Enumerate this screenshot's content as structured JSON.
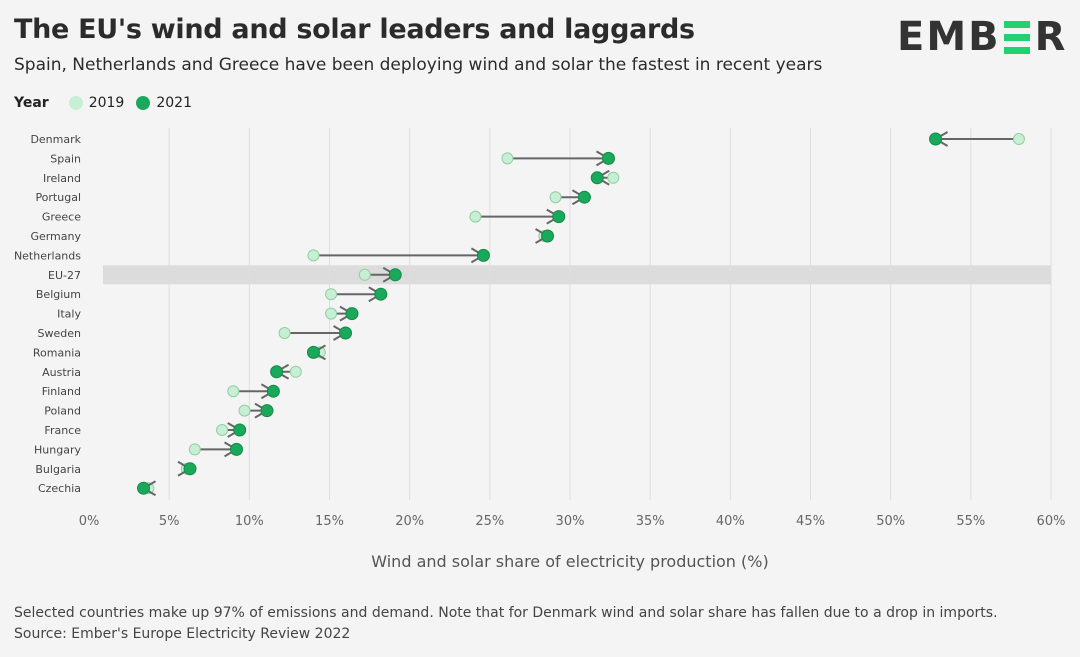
{
  "header": {
    "title": "The EU's wind and solar leaders and laggards",
    "subtitle": "Spain, Netherlands and Greece have been deploying wind and solar the fastest in recent years",
    "logo": "EMBER"
  },
  "legend": {
    "label": "Year",
    "items": [
      {
        "name": "2019",
        "color": "#c8efd6"
      },
      {
        "name": "2021",
        "color": "#1aa85a"
      }
    ]
  },
  "footer": {
    "note": "Selected countries make up 97% of emissions and demand. Note that for Denmark wind and solar share has fallen due to a drop in imports.",
    "source": "Source: Ember's Europe Electricity Review 2022"
  },
  "chart_data": {
    "type": "dumbbell",
    "xlabel": "Wind and solar share of electricity production (%)",
    "xlim": [
      0,
      60
    ],
    "xticks": [
      "0%",
      "5%",
      "10%",
      "15%",
      "20%",
      "25%",
      "30%",
      "35%",
      "40%",
      "45%",
      "50%",
      "55%",
      "60%"
    ],
    "highlight": "EU-27",
    "categories": [
      "Denmark",
      "Spain",
      "Ireland",
      "Portugal",
      "Greece",
      "Germany",
      "Netherlands",
      "EU-27",
      "Belgium",
      "Italy",
      "Sweden",
      "Romania",
      "Austria",
      "Finland",
      "Poland",
      "France",
      "Hungary",
      "Bulgaria",
      "Czechia"
    ],
    "series": [
      {
        "name": "2019",
        "values": [
          58.0,
          26.1,
          32.7,
          29.1,
          24.1,
          28.4,
          14.0,
          17.2,
          15.1,
          15.1,
          12.2,
          14.4,
          12.9,
          9.0,
          9.7,
          8.3,
          6.6,
          6.1,
          3.7
        ]
      },
      {
        "name": "2021",
        "values": [
          52.8,
          32.4,
          31.7,
          30.9,
          29.3,
          28.6,
          24.6,
          19.1,
          18.2,
          16.4,
          16.0,
          14.0,
          11.7,
          11.5,
          11.1,
          9.4,
          9.2,
          6.3,
          3.4
        ]
      }
    ]
  }
}
